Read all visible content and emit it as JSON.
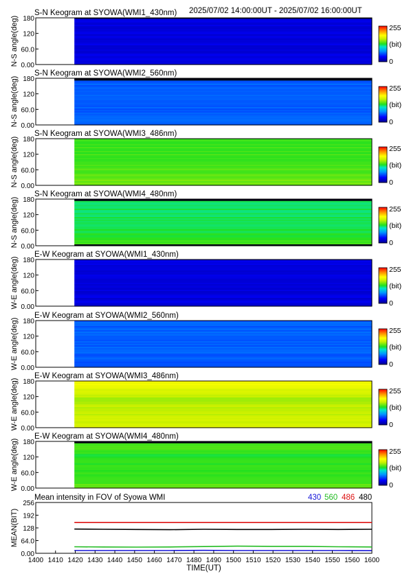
{
  "header": {
    "date_range": "2025/07/02 14:00:00UT - 2025/07/02 16:00:00UT"
  },
  "chart_data": [
    {
      "type": "heatmap",
      "title": "S-N Keogram at SYOWA(WMI1_430nm)",
      "ylabel": "N-S angle(deg)",
      "xlim": [
        1400,
        1600
      ],
      "ylim": [
        0,
        180
      ],
      "yticks": [
        "180",
        "120",
        "60.0",
        "0.00"
      ],
      "data_start": 1423,
      "colorbar": {
        "min": "0",
        "max": "255",
        "unit": "(bit)"
      },
      "level": 0.1,
      "top_band": 0.02,
      "bottom_band": 0.0
    },
    {
      "type": "heatmap",
      "title": "S-N Keogram at SYOWA(WMI2_560nm)",
      "ylabel": "N-S angle(deg)",
      "xlim": [
        1400,
        1600
      ],
      "ylim": [
        0,
        180
      ],
      "yticks": [
        "180",
        "120",
        "60.0",
        "0.00"
      ],
      "data_start": 1423,
      "colorbar": {
        "min": "0",
        "max": "255",
        "unit": "(bit)"
      },
      "level": 0.24,
      "top_band": 0.05,
      "bottom_band": 0.0
    },
    {
      "type": "heatmap",
      "title": "S-N Keogram at SYOWA(WMI3_486nm)",
      "ylabel": "N-S angle(deg)",
      "xlim": [
        1400,
        1600
      ],
      "ylim": [
        0,
        180
      ],
      "yticks": [
        "180",
        "120",
        "60.0",
        "0.00"
      ],
      "data_start": 1423,
      "colorbar": {
        "min": "0",
        "max": "255",
        "unit": "(bit)"
      },
      "level": 0.52,
      "top_band": 0.0,
      "bottom_band": 0.0
    },
    {
      "type": "heatmap",
      "title": "S-N Keogram at SYOWA(WMI4_480nm)",
      "ylabel": "N-S angle(deg)",
      "xlim": [
        1400,
        1600
      ],
      "ylim": [
        0,
        180
      ],
      "yticks": [
        "180",
        "120",
        "60.0",
        "0.00"
      ],
      "data_start": 1423,
      "colorbar": {
        "min": "0",
        "max": "255",
        "unit": "(bit)"
      },
      "level": 0.47,
      "top_band": 0.04,
      "bottom_band": 0.03
    },
    {
      "type": "heatmap",
      "title": "E-W Keogram at SYOWA(WMI1_430nm)",
      "ylabel": "W-E angle(deg)",
      "xlim": [
        1400,
        1600
      ],
      "ylim": [
        0,
        180
      ],
      "yticks": [
        "180",
        "120",
        "60.0",
        "0.00"
      ],
      "data_start": 1423,
      "colorbar": {
        "min": "0",
        "max": "255",
        "unit": "(bit)"
      },
      "level": 0.1,
      "top_band": 0.0,
      "bottom_band": 0.0
    },
    {
      "type": "heatmap",
      "title": "E-W Keogram at SYOWA(WMI2_560nm)",
      "ylabel": "W-E angle(deg)",
      "xlim": [
        1400,
        1600
      ],
      "ylim": [
        0,
        180
      ],
      "yticks": [
        "180",
        "120",
        "60.0",
        "0.00"
      ],
      "data_start": 1423,
      "colorbar": {
        "min": "0",
        "max": "255",
        "unit": "(bit)"
      },
      "level": 0.24,
      "top_band": 0.0,
      "bottom_band": 0.0
    },
    {
      "type": "heatmap",
      "title": "E-W Keogram at SYOWA(WMI3_486nm)",
      "ylabel": "W-E angle(deg)",
      "xlim": [
        1400,
        1600
      ],
      "ylim": [
        0,
        180
      ],
      "yticks": [
        "180",
        "120",
        "60.0",
        "0.00"
      ],
      "data_start": 1423,
      "colorbar": {
        "min": "0",
        "max": "255",
        "unit": "(bit)"
      },
      "level": 0.62,
      "top_band": 0.0,
      "bottom_band": 0.0
    },
    {
      "type": "heatmap",
      "title": "E-W Keogram at SYOWA(WMI4_480nm)",
      "ylabel": "W-E angle(deg)",
      "xlim": [
        1400,
        1600
      ],
      "ylim": [
        0,
        180
      ],
      "yticks": [
        "180",
        "120",
        "60.0",
        "0.00"
      ],
      "data_start": 1423,
      "colorbar": {
        "min": "0",
        "max": "255",
        "unit": "(bit)"
      },
      "level": 0.5,
      "top_band": 0.04,
      "bottom_band": 0.0
    },
    {
      "type": "line",
      "title": "Mean intensity in FOV of Syowa WMI",
      "ylabel": "MEAN(BIT)",
      "xlabel": "TIME(UT)",
      "xlim": [
        1400,
        1600
      ],
      "ylim": [
        0,
        256
      ],
      "yticks": [
        "256",
        "192",
        "128",
        "64.0",
        "0.00"
      ],
      "xticks": [
        "1400",
        "1410",
        "1420",
        "1430",
        "1440",
        "1450",
        "1460",
        "1470",
        "1480",
        "1490",
        "1500",
        "1510",
        "1520",
        "1530",
        "1540",
        "1550",
        "1560",
        "1600"
      ],
      "series": [
        {
          "name": "430",
          "color": "#1515d8",
          "x": [
            1423,
            1440,
            1460,
            1480,
            1500,
            1520,
            1540,
            1560,
            1580,
            1600
          ],
          "values": [
            14,
            14,
            14,
            14,
            15,
            14,
            14,
            14,
            14,
            13
          ]
        },
        {
          "name": "560",
          "color": "#22bb22",
          "x": [
            1423,
            1440,
            1460,
            1480,
            1500,
            1520,
            1540,
            1560,
            1580,
            1600
          ],
          "values": [
            33,
            32,
            31,
            32,
            34,
            36,
            35,
            35,
            33,
            32
          ]
        },
        {
          "name": "486",
          "color": "#dd1111",
          "x": [
            1423,
            1440,
            1460,
            1480,
            1500,
            1520,
            1540,
            1560,
            1580,
            1600
          ],
          "values": [
            155,
            155,
            155,
            155,
            155,
            155,
            155,
            155,
            155,
            155
          ]
        },
        {
          "name": "480",
          "color": "#000000",
          "x": [
            1423,
            1440,
            1460,
            1480,
            1500,
            1520,
            1540,
            1560,
            1580,
            1600
          ],
          "values": [
            122,
            121,
            120,
            119,
            121,
            120,
            120,
            121,
            120,
            121
          ]
        }
      ]
    }
  ]
}
